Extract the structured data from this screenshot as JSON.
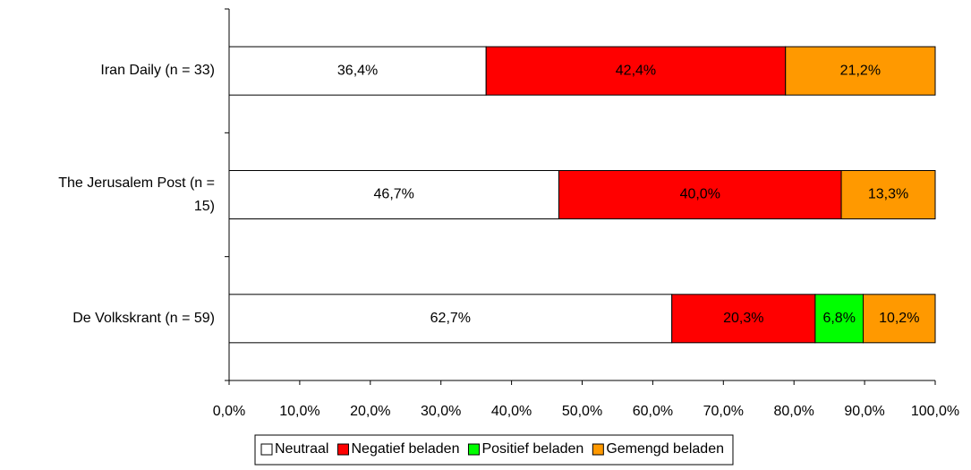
{
  "chart_data": {
    "type": "stacked-bar-horizontal",
    "categories": [
      "Iran Daily (n = 33)",
      "The Jerusalem Post (n = 15)",
      "De Volkskrant (n = 59)"
    ],
    "series": [
      {
        "name": "Neutraal",
        "color": "#ffffff",
        "values": [
          36.4,
          46.7,
          62.7
        ],
        "value_labels": [
          "36,4%",
          "46,7%",
          "62,7%"
        ]
      },
      {
        "name": "Negatief beladen",
        "color": "#ff0000",
        "values": [
          42.4,
          40.0,
          20.3
        ],
        "value_labels": [
          "42,4%",
          "40,0%",
          "20,3%"
        ]
      },
      {
        "name": "Positief beladen",
        "color": "#00ff00",
        "values": [
          0,
          0,
          6.8
        ],
        "value_labels": [
          null,
          null,
          "6,8%"
        ]
      },
      {
        "name": "Gemengd beladen",
        "color": "#ff9900",
        "values": [
          21.2,
          13.3,
          10.2
        ],
        "value_labels": [
          "21,2%",
          "13,3%",
          "10,2%"
        ]
      }
    ],
    "xlim": [
      0,
      100
    ],
    "xticks": [
      {
        "value": 0,
        "label": "0,0%"
      },
      {
        "value": 10,
        "label": "10,0%"
      },
      {
        "value": 20,
        "label": "20,0%"
      },
      {
        "value": 30,
        "label": "30,0%"
      },
      {
        "value": 40,
        "label": "40,0%"
      },
      {
        "value": 50,
        "label": "50,0%"
      },
      {
        "value": 60,
        "label": "60,0%"
      },
      {
        "value": 70,
        "label": "70,0%"
      },
      {
        "value": 80,
        "label": "80,0%"
      },
      {
        "value": 90,
        "label": "90,0%"
      },
      {
        "value": 100,
        "label": "100,0%"
      }
    ],
    "legend": "bottom"
  }
}
